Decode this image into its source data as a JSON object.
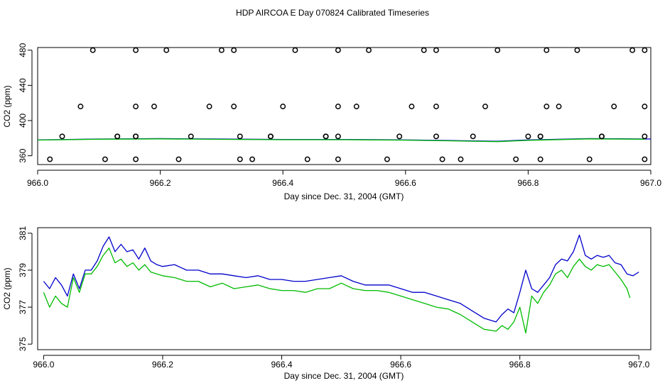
{
  "figure_title": "HDP AIRCOA E  Day 070824  Calibrated Timeseries",
  "colors": {
    "series_blue": "#0000cc",
    "series_green": "#00bb00",
    "points": "#000000",
    "axes": "#000000"
  },
  "chart_data": [
    {
      "type": "scatter",
      "title": "",
      "xlabel": "Day since Dec. 31, 2004 (GMT)",
      "ylabel": "CO2 (ppm)",
      "xlim": [
        966.0,
        967.0
      ],
      "ylim": [
        350,
        483
      ],
      "x_ticks": [
        966.0,
        966.2,
        966.4,
        966.6,
        966.8,
        967.0
      ],
      "x_tick_labels": [
        "966.0",
        "966.2",
        "966.4",
        "966.6",
        "966.8",
        "967.0"
      ],
      "y_ticks": [
        360,
        400,
        440,
        480
      ],
      "y_tick_labels": [
        "360",
        "400",
        "440",
        "480"
      ],
      "grid": false,
      "legend": "none",
      "points": {
        "ppm_480": [
          966.09,
          966.16,
          966.21,
          966.3,
          966.32,
          966.42,
          966.49,
          966.54,
          966.63,
          966.65,
          966.75,
          966.83,
          966.88,
          966.97,
          966.99
        ],
        "ppm_416": [
          966.07,
          966.16,
          966.19,
          966.28,
          966.32,
          966.4,
          966.49,
          966.52,
          966.61,
          966.65,
          966.73,
          966.83,
          966.85,
          966.94,
          966.99
        ],
        "ppm_382": [
          966.04,
          966.13,
          966.13,
          966.16,
          966.16,
          966.25,
          966.33,
          966.38,
          966.38,
          966.47,
          966.47,
          966.49,
          966.59,
          966.65,
          966.71,
          966.8,
          966.82,
          966.82,
          966.92,
          966.92,
          966.99
        ],
        "ppm_356": [
          966.02,
          966.11,
          966.16,
          966.23,
          966.33,
          966.35,
          966.44,
          966.49,
          966.57,
          966.66,
          966.69,
          966.78,
          966.82,
          966.9,
          966.99
        ]
      },
      "series": [
        {
          "color": "#0000cc",
          "x": [
            966.0,
            966.1,
            966.2,
            966.3,
            966.4,
            966.5,
            966.6,
            966.7,
            966.75,
            966.8,
            966.9,
            967.0
          ],
          "values": [
            378.0,
            379.0,
            379.5,
            379.0,
            378.5,
            378.5,
            378.0,
            377.0,
            376.5,
            378.0,
            379.5,
            379.0
          ]
        },
        {
          "color": "#00bb00",
          "x": [
            966.0,
            966.1,
            966.2,
            966.3,
            966.4,
            966.5,
            966.6,
            966.7,
            966.75,
            966.8,
            966.9,
            966.99
          ],
          "values": [
            377.8,
            378.8,
            379.2,
            378.6,
            378.2,
            378.2,
            377.7,
            376.6,
            376.0,
            377.5,
            379.2,
            378.8
          ]
        }
      ]
    },
    {
      "type": "line",
      "title": "",
      "xlabel": "Day since Dec. 31, 2004 (GMT)",
      "ylabel": "CO2 (ppm)",
      "xlim": [
        965.99,
        967.02
      ],
      "ylim": [
        374.7,
        381.3
      ],
      "x_ticks": [
        966.0,
        966.2,
        966.4,
        966.6,
        966.8,
        967.0
      ],
      "x_tick_labels": [
        "966.0",
        "966.2",
        "966.4",
        "966.6",
        "966.8",
        "967.0"
      ],
      "y_ticks": [
        375,
        377,
        379,
        381
      ],
      "y_tick_labels": [
        "375",
        "377",
        "379",
        "381"
      ],
      "grid": false,
      "legend": "none",
      "series": [
        {
          "color": "#0000cc",
          "x": [
            966.0,
            966.01,
            966.02,
            966.03,
            966.04,
            966.05,
            966.06,
            966.07,
            966.08,
            966.09,
            966.1,
            966.11,
            966.12,
            966.13,
            966.14,
            966.15,
            966.16,
            966.17,
            966.18,
            966.19,
            966.2,
            966.22,
            966.24,
            966.26,
            966.28,
            966.3,
            966.32,
            966.34,
            966.36,
            966.38,
            966.4,
            966.42,
            966.44,
            966.46,
            966.48,
            966.5,
            966.52,
            966.54,
            966.56,
            966.58,
            966.6,
            966.62,
            966.64,
            966.66,
            966.68,
            966.7,
            966.72,
            966.74,
            966.76,
            966.77,
            966.78,
            966.79,
            966.8,
            966.81,
            966.82,
            966.83,
            966.84,
            966.85,
            966.86,
            966.87,
            966.88,
            966.89,
            966.9,
            966.91,
            966.92,
            966.93,
            966.94,
            966.95,
            966.96,
            966.97,
            966.98,
            966.99,
            967.0
          ],
          "values": [
            378.4,
            378.0,
            378.6,
            378.2,
            377.6,
            378.8,
            378.0,
            379.0,
            379.0,
            379.5,
            380.3,
            380.8,
            380.0,
            380.4,
            380.0,
            380.1,
            379.6,
            380.2,
            379.5,
            379.3,
            379.2,
            379.3,
            379.0,
            379.0,
            378.8,
            378.8,
            378.7,
            378.6,
            378.7,
            378.5,
            378.5,
            378.4,
            378.4,
            378.5,
            378.6,
            378.7,
            378.4,
            378.2,
            378.2,
            378.2,
            378.0,
            377.8,
            377.8,
            377.6,
            377.4,
            377.2,
            376.8,
            376.4,
            376.2,
            376.6,
            376.9,
            376.7,
            377.8,
            379.0,
            378.0,
            377.8,
            378.2,
            378.6,
            379.3,
            379.6,
            379.5,
            380.0,
            380.9,
            379.8,
            379.6,
            379.8,
            379.7,
            379.8,
            379.4,
            379.3,
            378.8,
            378.7,
            378.9
          ]
        },
        {
          "color": "#00bb00",
          "x": [
            966.0,
            966.01,
            966.02,
            966.03,
            966.04,
            966.05,
            966.06,
            966.07,
            966.08,
            966.09,
            966.1,
            966.11,
            966.12,
            966.13,
            966.14,
            966.15,
            966.16,
            966.17,
            966.18,
            966.19,
            966.2,
            966.22,
            966.24,
            966.26,
            966.28,
            966.3,
            966.32,
            966.34,
            966.36,
            966.38,
            966.4,
            966.42,
            966.44,
            966.46,
            966.48,
            966.5,
            966.52,
            966.54,
            966.56,
            966.58,
            966.6,
            966.62,
            966.64,
            966.66,
            966.68,
            966.7,
            966.72,
            966.74,
            966.76,
            966.77,
            966.78,
            966.79,
            966.8,
            966.81,
            966.82,
            966.83,
            966.84,
            966.85,
            966.86,
            966.87,
            966.88,
            966.89,
            966.9,
            966.91,
            966.92,
            966.93,
            966.94,
            966.95,
            966.96,
            966.97,
            966.98,
            966.985
          ],
          "values": [
            377.8,
            377.0,
            377.6,
            377.2,
            377.0,
            378.6,
            377.8,
            378.8,
            378.8,
            379.2,
            379.8,
            380.2,
            379.4,
            379.6,
            379.2,
            379.4,
            379.0,
            379.3,
            378.9,
            378.8,
            378.7,
            378.6,
            378.4,
            378.4,
            378.1,
            378.3,
            378.0,
            378.1,
            378.2,
            378.0,
            377.9,
            377.9,
            377.8,
            378.0,
            378.0,
            378.3,
            378.0,
            377.9,
            377.9,
            377.8,
            377.6,
            377.4,
            377.2,
            377.0,
            376.9,
            376.6,
            376.2,
            375.8,
            375.7,
            376.0,
            375.8,
            376.2,
            377.0,
            375.6,
            377.6,
            377.2,
            377.8,
            378.2,
            378.8,
            379.0,
            378.6,
            379.2,
            379.6,
            379.2,
            379.0,
            379.3,
            379.2,
            379.3,
            378.9,
            378.5,
            378.0,
            377.5
          ]
        }
      ]
    }
  ]
}
